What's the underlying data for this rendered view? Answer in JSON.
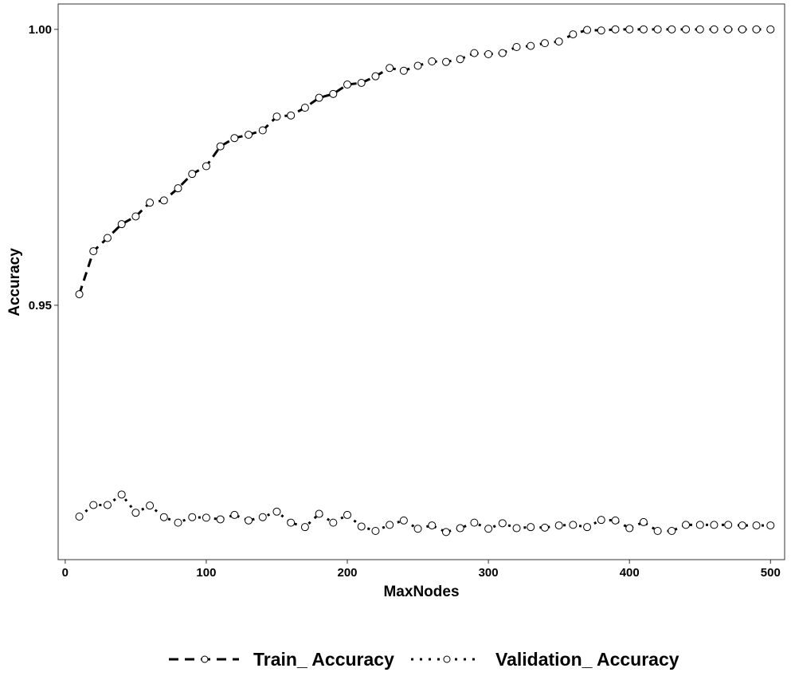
{
  "chart_data": {
    "type": "line",
    "xlabel": "MaxNodes",
    "ylabel": "Accuracy",
    "xlim": [
      -5,
      510
    ],
    "ylim": [
      0.9039,
      1.0046
    ],
    "x_ticks": [
      0,
      100,
      200,
      300,
      400,
      500
    ],
    "x_tick_labels": [
      "0",
      "100",
      "200",
      "300",
      "400",
      "500"
    ],
    "y_ticks": [
      0.95,
      1.0
    ],
    "y_tick_labels": [
      "0.95",
      "1.00"
    ],
    "grid": false,
    "legend_position": "bottom",
    "x": [
      10,
      20,
      30,
      40,
      50,
      60,
      70,
      80,
      90,
      100,
      110,
      120,
      130,
      140,
      150,
      160,
      170,
      180,
      190,
      200,
      210,
      220,
      230,
      240,
      250,
      260,
      270,
      280,
      290,
      300,
      310,
      320,
      330,
      340,
      350,
      360,
      370,
      380,
      390,
      400,
      410,
      420,
      430,
      440,
      450,
      460,
      470,
      480,
      490,
      500
    ],
    "series": [
      {
        "name": "Train_ Accuracy",
        "line_style": "dashed",
        "marker": "open-circle",
        "values": [
          0.952,
          0.9598,
          0.9622,
          0.9647,
          0.9661,
          0.9686,
          0.969,
          0.9712,
          0.9738,
          0.9752,
          0.9788,
          0.9803,
          0.9809,
          0.9817,
          0.9842,
          0.9844,
          0.9858,
          0.9876,
          0.9883,
          0.99,
          0.9903,
          0.9915,
          0.993,
          0.9925,
          0.9934,
          0.9942,
          0.9941,
          0.9946,
          0.9957,
          0.9955,
          0.9957,
          0.9968,
          0.997,
          0.9975,
          0.9978,
          0.9991,
          0.9999,
          0.9998,
          1.0,
          1.0,
          1.0,
          1.0,
          1.0,
          1.0,
          1.0,
          1.0,
          1.0,
          1.0,
          1.0,
          1.0
        ]
      },
      {
        "name": "Validation_ Accuracy",
        "line_style": "dotted",
        "marker": "open-circle",
        "values": [
          0.9117,
          0.9138,
          0.9138,
          0.9157,
          0.9124,
          0.9137,
          0.9116,
          0.9106,
          0.9116,
          0.9115,
          0.9112,
          0.912,
          0.911,
          0.9116,
          0.9126,
          0.9106,
          0.9098,
          0.9122,
          0.9106,
          0.912,
          0.9099,
          0.9091,
          0.9102,
          0.911,
          0.9095,
          0.9101,
          0.9089,
          0.9096,
          0.9106,
          0.9095,
          0.9105,
          0.9096,
          0.9098,
          0.9097,
          0.9101,
          0.9102,
          0.9098,
          0.9111,
          0.911,
          0.9096,
          0.9107,
          0.9091,
          0.9091,
          0.9102,
          0.9102,
          0.9102,
          0.9102,
          0.9101,
          0.9101,
          0.9101
        ]
      }
    ]
  }
}
